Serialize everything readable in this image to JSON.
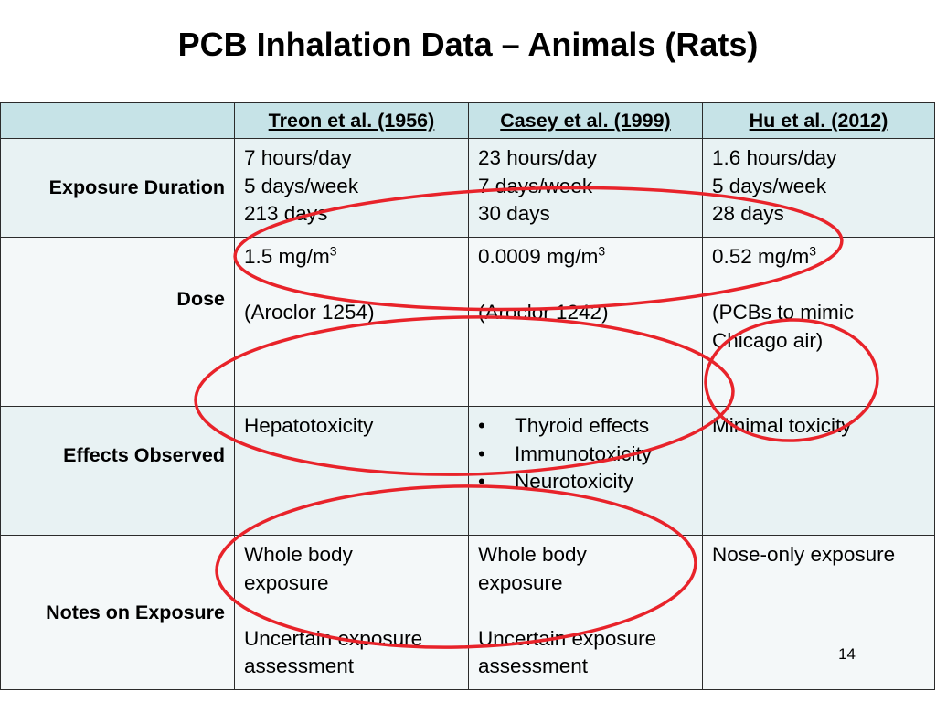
{
  "slide": {
    "title": "PCB Inhalation Data – Animals (Rats)",
    "page_number": "14"
  },
  "table": {
    "headers": [
      "",
      "Treon et al. (1956)",
      "Casey et al. (1999)",
      "Hu et al. (2012)"
    ],
    "rows": [
      {
        "label": "Exposure Duration",
        "cells": [
          [
            "7 hours/day",
            "5 days/week",
            "213 days"
          ],
          [
            "23 hours/day",
            "7 days/week",
            "30 days"
          ],
          [
            "1.6 hours/day",
            "5 days/week",
            "28 days"
          ]
        ]
      },
      {
        "label": "Dose",
        "cells": [
          {
            "value": "1.5 mg/m",
            "sup": "3",
            "note": "(Aroclor 1254)"
          },
          {
            "value": "0.0009 mg/m",
            "sup": "3",
            "note": "(Aroclor 1242)"
          },
          {
            "value": "0.52 mg/m",
            "sup": "3",
            "note": [
              "(PCBs to mimic",
              "Chicago air)"
            ]
          }
        ]
      },
      {
        "label": "Effects Observed",
        "cells": [
          [
            "Hepatotoxicity"
          ],
          {
            "bullet": "•",
            "items": [
              "Thyroid effects",
              "Immunotoxicity",
              "Neurotoxicity"
            ]
          },
          [
            "Minimal toxicity"
          ]
        ]
      },
      {
        "label": "Notes on Exposure",
        "cells": [
          {
            "a": [
              "Whole body",
              "exposure"
            ],
            "b": [
              "Uncertain exposure",
              "assessment"
            ]
          },
          {
            "a": [
              "Whole body",
              "exposure"
            ],
            "b": [
              "Uncertain exposure",
              "assessment"
            ]
          },
          {
            "a": [
              "Nose-only exposure"
            ],
            "b": []
          }
        ]
      }
    ]
  },
  "annotation_color": "#e8232a"
}
